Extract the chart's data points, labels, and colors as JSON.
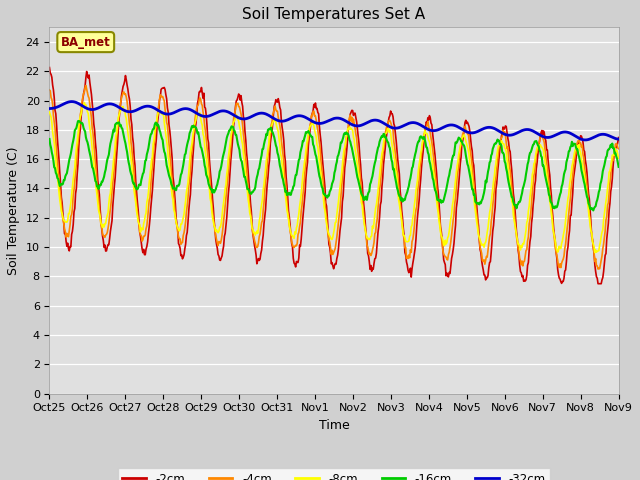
{
  "title": "Soil Temperatures Set A",
  "xlabel": "Time",
  "ylabel": "Soil Temperature (C)",
  "ylim": [
    0,
    25
  ],
  "yticks": [
    0,
    2,
    4,
    6,
    8,
    10,
    12,
    14,
    16,
    18,
    20,
    22,
    24
  ],
  "xtick_labels": [
    "Oct 25",
    "Oct 26",
    "Oct 27",
    "Oct 28",
    "Oct 29",
    "Oct 30",
    "Oct 31",
    "Nov 1",
    "Nov 2",
    "Nov 3",
    "Nov 4",
    "Nov 5",
    "Nov 6",
    "Nov 7",
    "Nov 8",
    "Nov 9"
  ],
  "colors": {
    "-2cm": "#cc0000",
    "-4cm": "#ff8800",
    "-8cm": "#ffff00",
    "-16cm": "#00cc00",
    "-32cm": "#0000cc"
  },
  "line_widths": {
    "-2cm": 1.2,
    "-4cm": 1.2,
    "-8cm": 1.2,
    "-16cm": 1.5,
    "-32cm": 2.0
  },
  "legend_label": "BA_met",
  "legend_bg": "#ffff99",
  "legend_border": "#888800",
  "fig_bg": "#d0d0d0",
  "plot_bg": "#e0e0e0",
  "title_fontsize": 11,
  "axis_fontsize": 9,
  "tick_fontsize": 8
}
